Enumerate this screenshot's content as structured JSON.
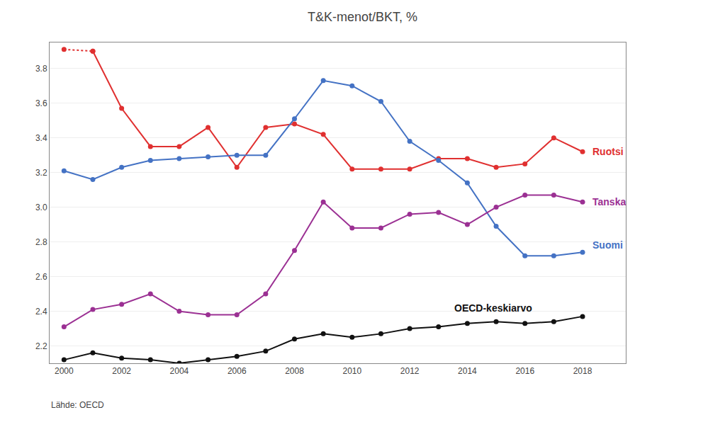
{
  "chart_data": {
    "type": "line",
    "title": "T&K-menot/BKT, %",
    "source": "Lähde: OECD",
    "xlim": [
      1999.5,
      2019.5
    ],
    "xticks": [
      2000,
      2002,
      2004,
      2006,
      2008,
      2010,
      2012,
      2014,
      2016,
      2018
    ],
    "ylim": [
      2.1,
      3.95
    ],
    "yticks": [
      2.2,
      2.4,
      2.6,
      2.8,
      {
        "value": 3.0,
        "label": "3.0"
      },
      3.2,
      3.4,
      3.6,
      3.8
    ],
    "grid": "y",
    "series": [
      {
        "name": "Ruotsi",
        "color": "#e03030",
        "marker": "circle",
        "line_style": "dotted",
        "x": [
          2000,
          2001
        ],
        "values": [
          3.91,
          3.9
        ]
      },
      {
        "name": "Ruotsi",
        "color": "#e03030",
        "marker": "circle",
        "line_style": "solid",
        "x": [
          2001,
          2002,
          2003,
          2004,
          2005,
          2006,
          2007,
          2008,
          2009,
          2010,
          2011,
          2012,
          2013,
          2014,
          2015,
          2016,
          2017,
          2018
        ],
        "values": [
          3.9,
          3.57,
          3.35,
          3.35,
          3.46,
          3.23,
          3.46,
          3.48,
          3.42,
          3.22,
          3.22,
          3.22,
          3.28,
          3.28,
          3.23,
          3.25,
          3.4,
          3.32
        ]
      },
      {
        "name": "Suomi",
        "color": "#4472c4",
        "marker": "circle",
        "line_style": "solid",
        "x": [
          2000,
          2001,
          2002,
          2003,
          2004,
          2005,
          2006,
          2007,
          2008,
          2009,
          2010,
          2011,
          2012,
          2013,
          2014,
          2015,
          2016,
          2017,
          2018
        ],
        "values": [
          3.21,
          3.16,
          3.23,
          3.27,
          3.28,
          3.29,
          3.3,
          3.3,
          3.51,
          3.73,
          3.7,
          3.61,
          3.38,
          3.27,
          3.14,
          2.89,
          2.72,
          2.72,
          2.74
        ]
      },
      {
        "name": "Tanska",
        "color": "#9b3093",
        "marker": "circle",
        "line_style": "solid",
        "x": [
          2000,
          2001,
          2002,
          2003,
          2004,
          2005,
          2006,
          2007,
          2008,
          2009,
          2010,
          2011,
          2012,
          2013,
          2014,
          2015,
          2016,
          2017,
          2018
        ],
        "values": [
          2.31,
          2.41,
          2.44,
          2.5,
          2.4,
          2.38,
          2.38,
          2.5,
          2.75,
          3.03,
          2.88,
          2.88,
          2.96,
          2.97,
          2.9,
          3.0,
          3.07,
          3.07,
          3.03
        ]
      },
      {
        "name": "OECD",
        "color": "#111111",
        "marker": "circle",
        "line_style": "solid",
        "x": [
          2000,
          2001,
          2002,
          2003,
          2004,
          2005,
          2006,
          2007,
          2008,
          2009,
          2010,
          2011,
          2012,
          2013,
          2014,
          2015,
          2016,
          2017,
          2018
        ],
        "values": [
          2.12,
          2.16,
          2.13,
          2.12,
          2.1,
          2.12,
          2.14,
          2.17,
          2.24,
          2.27,
          2.25,
          2.27,
          2.3,
          2.31,
          2.33,
          2.34,
          2.33,
          2.34,
          2.37
        ]
      }
    ],
    "annotations": [
      {
        "text": "Ruotsi",
        "x": 2018.3,
        "y": 3.32,
        "color": "#e03030"
      },
      {
        "text": "Suomi",
        "x": 2018.3,
        "y": 2.78,
        "color": "#4472c4"
      },
      {
        "text": "Tanska",
        "x": 2018.3,
        "y": 3.03,
        "color": "#9b3093"
      },
      {
        "text": "OECD-keskiarvo",
        "x": 2013.5,
        "y": 2.42,
        "color": "#111111"
      }
    ]
  }
}
